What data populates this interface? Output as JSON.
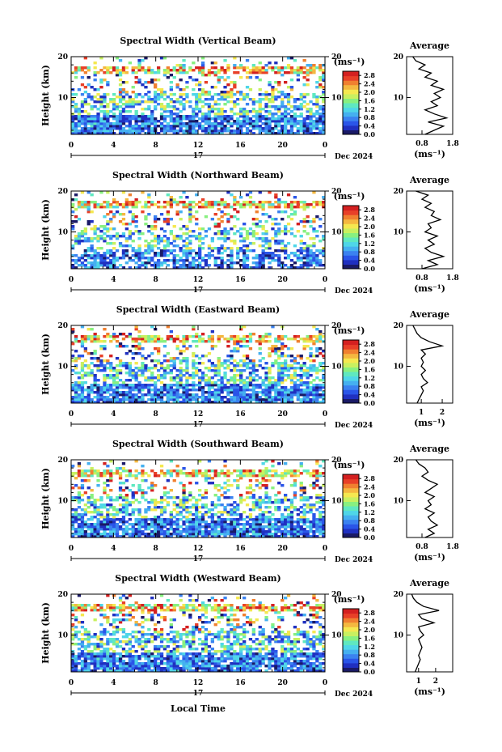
{
  "colorbar": {
    "unit_label": "(ms⁻¹)",
    "ticks": [
      "2.8",
      "2.4",
      "2.0",
      "1.6",
      "1.2",
      "0.8",
      "0.4",
      "0.0"
    ]
  },
  "axes": {
    "ylabel": "Height (km)",
    "x_ticks": [
      "0",
      "4",
      "8",
      "12",
      "16",
      "20",
      "0"
    ],
    "y_ticks": [
      "20",
      "10"
    ],
    "day_label": "17",
    "month_label": "Dec 2024",
    "xlabel": "Local Time"
  },
  "avg_title": "Average",
  "avg_unit": "(ms⁻¹)",
  "chart_data": [
    {
      "type": "heatmap",
      "title": "Spectral Width (Vertical Beam)",
      "xlabel": "",
      "ylabel": "Height (km)",
      "xlim": [
        0,
        24
      ],
      "ylim": [
        1,
        20
      ],
      "clim": [
        0,
        3.0
      ],
      "avg_xlim": [
        0.3,
        1.8
      ],
      "avg_ticks": [
        "0.8",
        "1.8"
      ],
      "avg_profile": [
        [
          0.9,
          1
        ],
        [
          1.2,
          2
        ],
        [
          1.5,
          3
        ],
        [
          1.0,
          4
        ],
        [
          1.6,
          5
        ],
        [
          1.2,
          6
        ],
        [
          0.9,
          7
        ],
        [
          1.3,
          8
        ],
        [
          1.1,
          9
        ],
        [
          1.4,
          10
        ],
        [
          1.2,
          11
        ],
        [
          1.5,
          12
        ],
        [
          1.1,
          13
        ],
        [
          1.3,
          14
        ],
        [
          0.9,
          15
        ],
        [
          1.1,
          16
        ],
        [
          0.7,
          17
        ],
        [
          0.9,
          18
        ],
        [
          0.6,
          19
        ],
        [
          0.5,
          20
        ]
      ]
    },
    {
      "type": "heatmap",
      "title": "Spectral Width (Northward Beam)",
      "xlabel": "",
      "ylabel": "Height (km)",
      "xlim": [
        0,
        24
      ],
      "ylim": [
        1,
        20
      ],
      "clim": [
        0,
        3.0
      ],
      "avg_xlim": [
        0.3,
        1.8
      ],
      "avg_ticks": [
        "0.8",
        "1.8"
      ],
      "avg_profile": [
        [
          0.8,
          1
        ],
        [
          1.3,
          2
        ],
        [
          1.0,
          3
        ],
        [
          1.5,
          4
        ],
        [
          1.1,
          5
        ],
        [
          0.9,
          6
        ],
        [
          1.2,
          7
        ],
        [
          1.0,
          8
        ],
        [
          1.3,
          9
        ],
        [
          0.9,
          10
        ],
        [
          1.1,
          11
        ],
        [
          1.0,
          12
        ],
        [
          1.4,
          13
        ],
        [
          1.1,
          14
        ],
        [
          1.2,
          15
        ],
        [
          0.9,
          16
        ],
        [
          1.1,
          17
        ],
        [
          0.8,
          18
        ],
        [
          1.0,
          19
        ],
        [
          0.6,
          20
        ]
      ]
    },
    {
      "type": "heatmap",
      "title": "Spectral Width (Eastward Beam)",
      "xlabel": "",
      "ylabel": "Height (km)",
      "xlim": [
        0,
        24
      ],
      "ylim": [
        1,
        20
      ],
      "clim": [
        0,
        3.0
      ],
      "avg_xlim": [
        0.3,
        2.5
      ],
      "avg_ticks": [
        "1",
        "2"
      ],
      "avg_profile": [
        [
          0.8,
          1
        ],
        [
          0.9,
          2
        ],
        [
          1.0,
          3
        ],
        [
          1.1,
          4
        ],
        [
          1.0,
          5
        ],
        [
          1.3,
          6
        ],
        [
          1.1,
          7
        ],
        [
          1.0,
          8
        ],
        [
          1.2,
          9
        ],
        [
          1.0,
          10
        ],
        [
          1.1,
          11
        ],
        [
          1.0,
          12
        ],
        [
          1.2,
          13
        ],
        [
          1.0,
          14
        ],
        [
          2.0,
          15
        ],
        [
          1.4,
          16
        ],
        [
          1.0,
          17
        ],
        [
          0.8,
          18
        ],
        [
          0.7,
          19
        ],
        [
          0.6,
          20
        ]
      ]
    },
    {
      "type": "heatmap",
      "title": "Spectral Width (Southward Beam)",
      "xlabel": "",
      "ylabel": "Height (km)",
      "xlim": [
        0,
        24
      ],
      "ylim": [
        1,
        20
      ],
      "clim": [
        0,
        3.0
      ],
      "avg_xlim": [
        0.3,
        1.8
      ],
      "avg_ticks": [
        "0.8",
        "1.8"
      ],
      "avg_profile": [
        [
          0.9,
          1
        ],
        [
          1.2,
          2
        ],
        [
          1.0,
          3
        ],
        [
          1.3,
          4
        ],
        [
          1.1,
          5
        ],
        [
          1.0,
          6
        ],
        [
          1.2,
          7
        ],
        [
          0.9,
          8
        ],
        [
          1.1,
          9
        ],
        [
          1.0,
          10
        ],
        [
          1.2,
          11
        ],
        [
          0.9,
          12
        ],
        [
          1.1,
          13
        ],
        [
          1.3,
          14
        ],
        [
          1.0,
          15
        ],
        [
          0.8,
          16
        ],
        [
          1.0,
          17
        ],
        [
          0.9,
          18
        ],
        [
          0.7,
          19
        ],
        [
          0.6,
          20
        ]
      ]
    },
    {
      "type": "heatmap",
      "title": "Spectral Width (Westward Beam)",
      "xlabel": "",
      "ylabel": "Height (km)",
      "xlim": [
        0,
        24
      ],
      "ylim": [
        1,
        20
      ],
      "clim": [
        0,
        3.0
      ],
      "avg_xlim": [
        0.3,
        3.0
      ],
      "avg_ticks": [
        "1",
        "2"
      ],
      "avg_profile": [
        [
          0.8,
          1
        ],
        [
          0.9,
          2
        ],
        [
          1.0,
          3
        ],
        [
          1.1,
          4
        ],
        [
          1.0,
          5
        ],
        [
          1.1,
          6
        ],
        [
          1.2,
          7
        ],
        [
          1.1,
          8
        ],
        [
          1.0,
          9
        ],
        [
          1.3,
          10
        ],
        [
          1.1,
          11
        ],
        [
          1.0,
          12
        ],
        [
          1.9,
          13
        ],
        [
          1.2,
          14
        ],
        [
          1.0,
          15
        ],
        [
          2.2,
          16
        ],
        [
          1.3,
          17
        ],
        [
          0.9,
          18
        ],
        [
          0.7,
          19
        ],
        [
          0.6,
          20
        ]
      ]
    }
  ]
}
